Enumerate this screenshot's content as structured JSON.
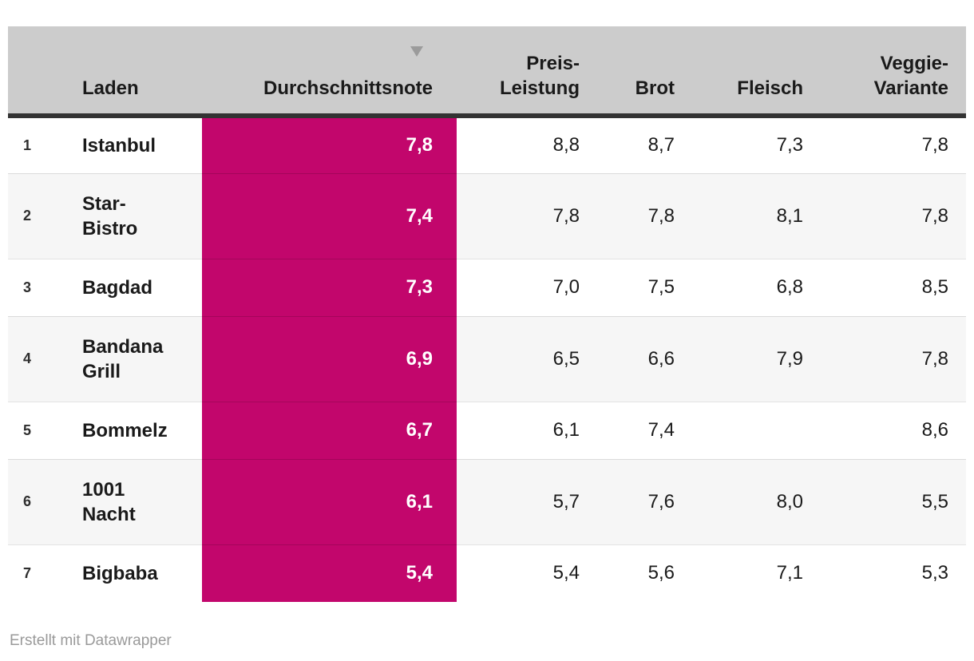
{
  "table": {
    "columns": [
      {
        "key": "rank",
        "label": ""
      },
      {
        "key": "name",
        "label": "Laden"
      },
      {
        "key": "note",
        "label": "Durchschnittsnote",
        "sorted": "desc"
      },
      {
        "key": "preis",
        "label": "Preis-\nLeistung"
      },
      {
        "key": "brot",
        "label": "Brot"
      },
      {
        "key": "fleisch",
        "label": "Fleisch"
      },
      {
        "key": "veggie",
        "label": "Veggie-\nVariante"
      }
    ],
    "rows": [
      {
        "rank": "1",
        "name": "Istanbul",
        "note": "7,8",
        "preis": "8,8",
        "brot": "8,7",
        "fleisch": "7,3",
        "veggie": "7,8"
      },
      {
        "rank": "2",
        "name": "Star-\nBistro",
        "note": "7,4",
        "preis": "7,8",
        "brot": "7,8",
        "fleisch": "8,1",
        "veggie": "7,8"
      },
      {
        "rank": "3",
        "name": "Bagdad",
        "note": "7,3",
        "preis": "7,0",
        "brot": "7,5",
        "fleisch": "6,8",
        "veggie": "8,5"
      },
      {
        "rank": "4",
        "name": "Bandana\nGrill",
        "note": "6,9",
        "preis": "6,5",
        "brot": "6,6",
        "fleisch": "7,9",
        "veggie": "7,8"
      },
      {
        "rank": "5",
        "name": "Bommelz",
        "note": "6,7",
        "preis": "6,1",
        "brot": "7,4",
        "fleisch": "",
        "veggie": "8,6"
      },
      {
        "rank": "6",
        "name": "1001\nNacht",
        "note": "6,1",
        "preis": "5,7",
        "brot": "7,6",
        "fleisch": "8,0",
        "veggie": "5,5"
      },
      {
        "rank": "7",
        "name": "Bigbaba",
        "note": "5,4",
        "preis": "5,4",
        "brot": "5,6",
        "fleisch": "7,1",
        "veggie": "5,3"
      }
    ]
  },
  "icons": {
    "sort_icon": "sort-descending-triangle"
  },
  "colors": {
    "highlight_column_bg": "#c2066c",
    "highlight_text": "#ffffff",
    "header_bg": "#cccccc",
    "header_underline": "#333333",
    "row_alt_bg": "#f6f6f6",
    "row_border": "#e4e4e4",
    "footer_text": "#9a9a9a",
    "sort_arrow": "#9b9b9b"
  },
  "footer": {
    "credit": "Erstellt mit Datawrapper"
  },
  "chart_data": {
    "type": "table",
    "columns": [
      "Laden",
      "Durchschnittsnote",
      "Preis-Leistung",
      "Brot",
      "Fleisch",
      "Veggie-Variante"
    ],
    "rows": [
      [
        "Istanbul",
        7.8,
        8.8,
        8.7,
        7.3,
        7.8
      ],
      [
        "Star-Bistro",
        7.4,
        7.8,
        7.8,
        8.1,
        7.8
      ],
      [
        "Bagdad",
        7.3,
        7.0,
        7.5,
        6.8,
        8.5
      ],
      [
        "Bandana Grill",
        6.9,
        6.5,
        6.6,
        7.9,
        7.8
      ],
      [
        "Bommelz",
        6.7,
        6.1,
        7.4,
        null,
        8.6
      ],
      [
        "1001 Nacht",
        6.1,
        5.7,
        7.6,
        8.0,
        5.5
      ],
      [
        "Bigbaba",
        5.4,
        5.4,
        5.6,
        7.1,
        5.3
      ]
    ],
    "sorted_by": "Durchschnittsnote",
    "sort_order": "desc",
    "highlight_column": "Durchschnittsnote",
    "highlight_color": "#c2066c",
    "footer": "Erstellt mit Datawrapper"
  }
}
